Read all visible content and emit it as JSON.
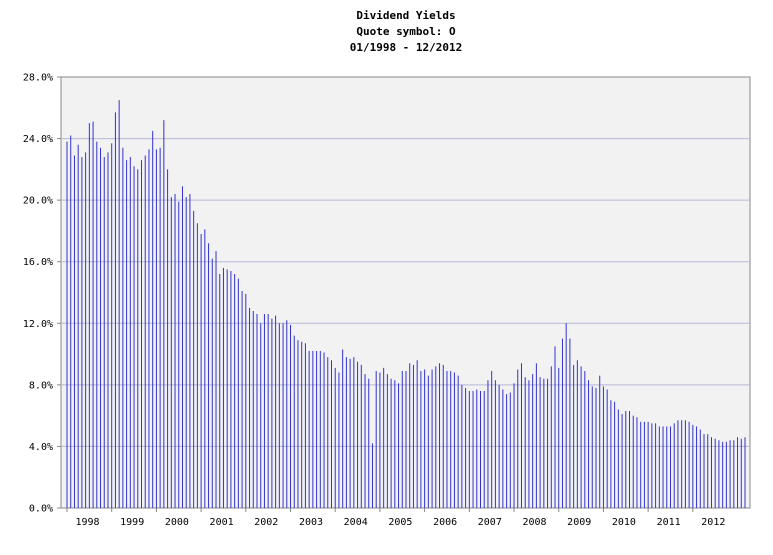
{
  "chart_data": {
    "type": "bar",
    "title": "Dividend Yields",
    "subtitle_lines": [
      "Quote symbol: O",
      "01/1998 - 12/2012"
    ],
    "xlabel": "",
    "ylabel": "",
    "ylim": [
      0,
      28
    ],
    "yticks": [
      "0.0%",
      "4.0%",
      "8.0%",
      "12.0%",
      "16.0%",
      "20.0%",
      "24.0%",
      "28.0%"
    ],
    "xticks": [
      "1998",
      "1999",
      "2000",
      "2001",
      "2002",
      "2003",
      "2004",
      "2005",
      "2006",
      "2007",
      "2008",
      "2009",
      "2010",
      "2011",
      "2012"
    ],
    "grid": true,
    "colors": {
      "bar": "#3333cc",
      "plot_bg": "#f2f2f2",
      "grid": "#b8b8d8",
      "axis": "#888888"
    },
    "start": "1998-01",
    "frequency": "monthly",
    "unit": "%",
    "values": [
      23.8,
      24.2,
      22.9,
      23.6,
      22.8,
      23.1,
      25.0,
      25.1,
      23.8,
      23.4,
      22.8,
      23.1,
      23.7,
      25.7,
      26.5,
      23.4,
      22.6,
      22.8,
      22.2,
      22.0,
      22.6,
      22.9,
      23.3,
      24.5,
      23.3,
      23.4,
      25.2,
      22.0,
      20.2,
      20.4,
      19.9,
      20.9,
      20.2,
      20.4,
      19.3,
      18.5,
      17.8,
      18.1,
      17.2,
      16.2,
      16.7,
      15.2,
      15.6,
      15.5,
      15.4,
      15.2,
      14.9,
      14.1,
      13.9,
      13.0,
      12.8,
      12.6,
      12.0,
      12.6,
      12.6,
      12.3,
      12.5,
      12.0,
      12.0,
      12.2,
      11.9,
      11.2,
      10.9,
      10.8,
      10.7,
      10.2,
      10.2,
      10.2,
      10.2,
      10.1,
      9.8,
      9.6,
      9.1,
      8.8,
      10.3,
      9.8,
      9.7,
      9.8,
      9.5,
      9.3,
      8.7,
      8.4,
      4.2,
      8.9,
      8.8,
      9.1,
      8.7,
      8.4,
      8.3,
      8.1,
      8.9,
      8.9,
      9.4,
      9.3,
      9.6,
      8.9,
      9.0,
      8.6,
      9.0,
      9.2,
      9.4,
      9.3,
      8.9,
      8.9,
      8.8,
      8.6,
      8.0,
      7.8,
      7.6,
      7.6,
      7.7,
      7.6,
      7.6,
      8.3,
      8.9,
      8.3,
      8.0,
      7.7,
      7.4,
      7.5,
      8.1,
      9.0,
      9.4,
      8.5,
      8.3,
      8.7,
      9.4,
      8.5,
      8.4,
      8.4,
      9.2,
      10.5,
      9.1,
      11.0,
      12.0,
      11.0,
      9.3,
      9.6,
      9.2,
      8.9,
      8.3,
      7.9,
      7.8,
      8.6,
      7.9,
      7.7,
      7.0,
      6.9,
      6.4,
      6.1,
      6.3,
      6.3,
      6.0,
      5.9,
      5.6,
      5.6,
      5.6,
      5.5,
      5.5,
      5.3,
      5.3,
      5.3,
      5.3,
      5.5,
      5.7,
      5.7,
      5.7,
      5.6,
      5.4,
      5.3,
      5.1,
      4.8,
      4.8,
      4.6,
      4.5,
      4.4,
      4.3,
      4.3,
      4.4,
      4.4,
      4.6,
      4.5,
      4.6
    ]
  }
}
